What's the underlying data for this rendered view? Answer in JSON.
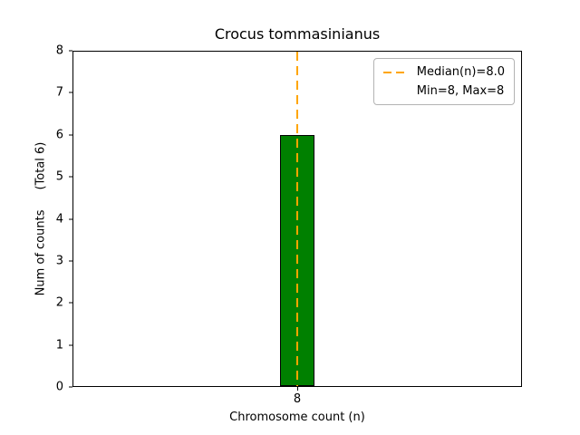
{
  "chart_data": {
    "type": "bar",
    "title": "Crocus tommasinianus",
    "xlabel": "Chromosome count (n)",
    "ylabel": "Num of counts",
    "ylabel_annotation": "(Total 6)",
    "categories": [
      "8"
    ],
    "values": [
      6
    ],
    "ylim": [
      0,
      8
    ],
    "yticks": [
      0,
      1,
      2,
      3,
      4,
      5,
      6,
      7,
      8
    ],
    "grid": false,
    "bar_color": "#008000",
    "bar_edge_color": "#000000",
    "median_line": {
      "value": 8.0,
      "color": "#ffa500",
      "style": "dashed"
    },
    "legend": {
      "position": "upper right",
      "entries": [
        {
          "label": "Median(n)=8.0",
          "swatch": "dashed-line"
        },
        {
          "label": "Min=8, Max=8",
          "swatch": "none"
        }
      ]
    }
  }
}
